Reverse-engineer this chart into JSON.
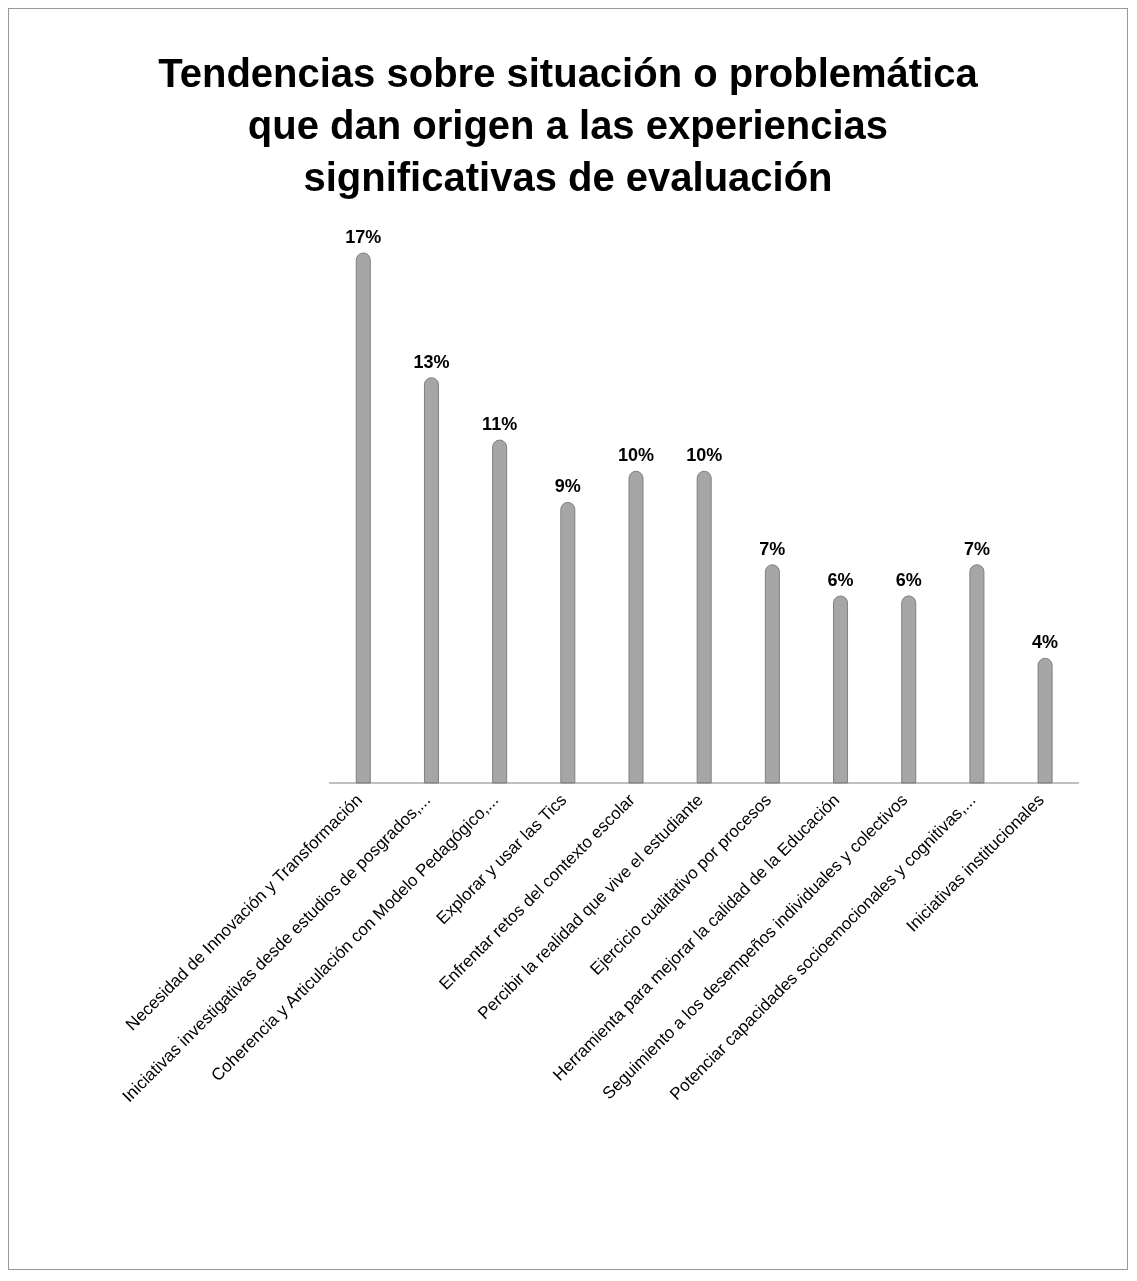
{
  "chart_data": {
    "type": "bar",
    "title": "Tendencias sobre situación o problemática que dan origen a las experiencias significativas de evaluación",
    "categories": [
      "Necesidad de Innovación y Transformación",
      "Iniciativas investigativas desde estudios de posgrados,...",
      "Coherencia y Articulación con Modelo Pedagógico,...",
      "Explorar y usar las Tics",
      "Enfrentar retos del contexto escolar",
      "Percibir la realidad que vive el estudiante",
      "Ejercicio cualitativo por procesos",
      "Herramienta para mejorar la calidad de la Educación",
      "Seguimiento a los desempeños individuales y colectivos",
      "Potenciar capacidades socioemocionales y cognitivas,...",
      "Iniciativas institucionales"
    ],
    "values": [
      17,
      13,
      11,
      9,
      10,
      10,
      7,
      6,
      6,
      7,
      4
    ],
    "value_labels": [
      "17%",
      "13%",
      "11%",
      "9%",
      "10%",
      "10%",
      "7%",
      "6%",
      "6%",
      "7%",
      "4%"
    ],
    "color": "#a6a6a6"
  }
}
